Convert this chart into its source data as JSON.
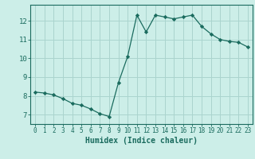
{
  "x": [
    0,
    1,
    2,
    3,
    4,
    5,
    6,
    7,
    8,
    9,
    10,
    11,
    12,
    13,
    14,
    15,
    16,
    17,
    18,
    19,
    20,
    21,
    22,
    23
  ],
  "y": [
    8.2,
    8.15,
    8.05,
    7.85,
    7.6,
    7.5,
    7.3,
    7.05,
    6.9,
    8.7,
    10.1,
    12.3,
    11.4,
    12.3,
    12.2,
    12.1,
    12.2,
    12.3,
    11.7,
    11.3,
    11.0,
    10.9,
    10.85,
    10.6
  ],
  "line_color": "#1a6b5e",
  "marker": "D",
  "marker_size": 2.2,
  "bg_color": "#cceee8",
  "grid_color": "#aad4ce",
  "xlabel": "Humidex (Indice chaleur)",
  "xlabel_fontsize": 7,
  "ylabel_ticks": [
    7,
    8,
    9,
    10,
    11,
    12
  ],
  "xlim": [
    -0.5,
    23.5
  ],
  "ylim": [
    6.5,
    12.85
  ],
  "xtick_labels": [
    "0",
    "1",
    "2",
    "3",
    "4",
    "5",
    "6",
    "7",
    "8",
    "9",
    "10",
    "11",
    "12",
    "13",
    "14",
    "15",
    "16",
    "17",
    "18",
    "19",
    "20",
    "21",
    "22",
    "23"
  ],
  "tick_color": "#1a6b5e",
  "tick_fontsize": 5.5,
  "ytick_fontsize": 6.5,
  "spine_color": "#1a6b5e"
}
